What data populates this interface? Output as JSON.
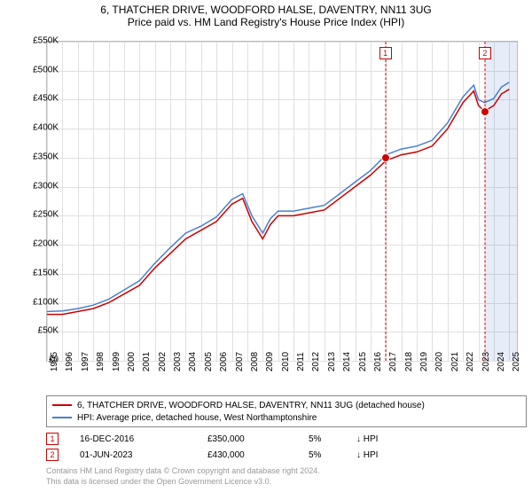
{
  "title": "6, THATCHER DRIVE, WOODFORD HALSE, DAVENTRY, NN11 3UG",
  "subtitle": "Price paid vs. HM Land Registry's House Price Index (HPI)",
  "chart": {
    "type": "line",
    "background_color": "#ffffff",
    "grid_color": "#e0e0e0",
    "axis_color": "#bbbbbb",
    "xlim": [
      1995,
      2025.5
    ],
    "ylim": [
      0,
      550000
    ],
    "yticks": [
      0,
      50000,
      100000,
      150000,
      200000,
      250000,
      300000,
      350000,
      400000,
      450000,
      500000,
      550000
    ],
    "ytick_labels": [
      "£0",
      "£50K",
      "£100K",
      "£150K",
      "£200K",
      "£250K",
      "£300K",
      "£350K",
      "£400K",
      "£450K",
      "£500K",
      "£550K"
    ],
    "xticks": [
      1995,
      1996,
      1997,
      1998,
      1999,
      2000,
      2001,
      2002,
      2003,
      2004,
      2005,
      2006,
      2007,
      2008,
      2009,
      2010,
      2011,
      2012,
      2013,
      2014,
      2015,
      2016,
      2017,
      2018,
      2019,
      2020,
      2021,
      2022,
      2023,
      2024,
      2025
    ],
    "line_width": 1.5,
    "label_fontsize": 10,
    "series": [
      {
        "name": "6, THATCHER DRIVE, WOODFORD HALSE, DAVENTRY, NN11 3UG (detached house)",
        "color": "#cc0000",
        "points": [
          [
            1995,
            80000
          ],
          [
            1996,
            80000
          ],
          [
            1997,
            85000
          ],
          [
            1998,
            90000
          ],
          [
            1999,
            100000
          ],
          [
            2000,
            115000
          ],
          [
            2001,
            130000
          ],
          [
            2002,
            160000
          ],
          [
            2003,
            185000
          ],
          [
            2004,
            210000
          ],
          [
            2005,
            225000
          ],
          [
            2006,
            240000
          ],
          [
            2007,
            270000
          ],
          [
            2007.7,
            280000
          ],
          [
            2008.3,
            240000
          ],
          [
            2009,
            210000
          ],
          [
            2009.5,
            235000
          ],
          [
            2010,
            250000
          ],
          [
            2011,
            250000
          ],
          [
            2012,
            255000
          ],
          [
            2013,
            260000
          ],
          [
            2014,
            280000
          ],
          [
            2015,
            300000
          ],
          [
            2016,
            320000
          ],
          [
            2017,
            345000
          ],
          [
            2018,
            355000
          ],
          [
            2019,
            360000
          ],
          [
            2020,
            370000
          ],
          [
            2021,
            400000
          ],
          [
            2022,
            445000
          ],
          [
            2022.7,
            465000
          ],
          [
            2023,
            440000
          ],
          [
            2023.4,
            430000
          ],
          [
            2024,
            440000
          ],
          [
            2024.5,
            460000
          ],
          [
            2025,
            468000
          ]
        ]
      },
      {
        "name": "HPI: Average price, detached house, West Northamptonshire",
        "color": "#4a7fd4",
        "points": [
          [
            1995,
            85000
          ],
          [
            1996,
            86000
          ],
          [
            1997,
            90000
          ],
          [
            1998,
            96000
          ],
          [
            1999,
            106000
          ],
          [
            2000,
            122000
          ],
          [
            2001,
            138000
          ],
          [
            2002,
            168000
          ],
          [
            2003,
            195000
          ],
          [
            2004,
            220000
          ],
          [
            2005,
            232000
          ],
          [
            2006,
            248000
          ],
          [
            2007,
            278000
          ],
          [
            2007.7,
            288000
          ],
          [
            2008.3,
            250000
          ],
          [
            2009,
            220000
          ],
          [
            2009.5,
            245000
          ],
          [
            2010,
            258000
          ],
          [
            2011,
            258000
          ],
          [
            2012,
            263000
          ],
          [
            2013,
            268000
          ],
          [
            2014,
            288000
          ],
          [
            2015,
            308000
          ],
          [
            2016,
            328000
          ],
          [
            2017,
            355000
          ],
          [
            2018,
            365000
          ],
          [
            2019,
            370000
          ],
          [
            2020,
            380000
          ],
          [
            2021,
            410000
          ],
          [
            2022,
            455000
          ],
          [
            2022.7,
            475000
          ],
          [
            2023,
            450000
          ],
          [
            2023.4,
            445000
          ],
          [
            2024,
            452000
          ],
          [
            2024.5,
            472000
          ],
          [
            2025,
            480000
          ]
        ]
      }
    ],
    "events": [
      {
        "n": "1",
        "date_x": 2016.96,
        "date_label": "16-DEC-2016",
        "price": 350000,
        "price_label": "£350,000",
        "pct": "5%",
        "direction": "↓",
        "vs": "HPI",
        "color": "#cc0000"
      },
      {
        "n": "2",
        "date_x": 2023.42,
        "date_label": "01-JUN-2023",
        "price": 430000,
        "price_label": "£430,000",
        "pct": "5%",
        "direction": "↓",
        "vs": "HPI",
        "color": "#cc0000"
      }
    ],
    "shade": {
      "from": 2023.42,
      "to": 2025.5
    }
  },
  "legend": {
    "rows": [
      {
        "color": "#cc0000",
        "label": "6, THATCHER DRIVE, WOODFORD HALSE, DAVENTRY, NN11 3UG (detached house)"
      },
      {
        "color": "#4a7fd4",
        "label": "HPI: Average price, detached house, West Northamptonshire"
      }
    ]
  },
  "footer": {
    "line1": "Contains HM Land Registry data © Crown copyright and database right 2024.",
    "line2": "This data is licensed under the Open Government Licence v3.0."
  }
}
